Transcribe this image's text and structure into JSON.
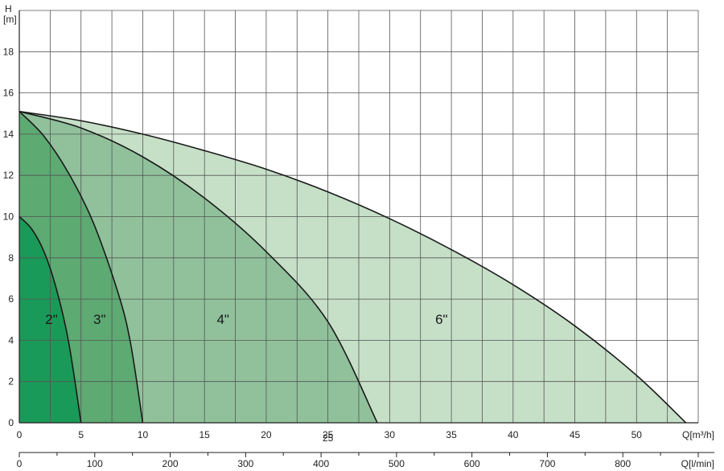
{
  "chart_data": {
    "type": "area",
    "y_axis": {
      "label_top": "H",
      "label_unit": "[m]",
      "ticks": [
        0,
        2,
        4,
        6,
        8,
        10,
        12,
        14,
        16,
        18
      ],
      "range": [
        0,
        20
      ],
      "grid": true
    },
    "x_axis_primary": {
      "label": "Q[m³/h]",
      "ticks": [
        0,
        5,
        10,
        15,
        20,
        25,
        30,
        35,
        40,
        45,
        50
      ],
      "range": [
        0,
        55
      ]
    },
    "x_axis_secondary": {
      "label": "Q[l/min]",
      "ticks": [
        0,
        100,
        200,
        300,
        400,
        500,
        600,
        700,
        800
      ],
      "range": [
        0,
        900
      ]
    },
    "series": [
      {
        "name": "6\"",
        "color": "#c6e0c7",
        "shutoff_head": 15.1,
        "max_flow": 54.0,
        "points": [
          [
            0,
            15.1
          ],
          [
            5,
            14.65
          ],
          [
            10,
            14.0
          ],
          [
            15,
            13.2
          ],
          [
            20,
            12.3
          ],
          [
            25,
            11.2
          ],
          [
            30,
            9.9
          ],
          [
            35,
            8.4
          ],
          [
            40,
            6.7
          ],
          [
            45,
            4.7
          ],
          [
            50,
            2.3
          ],
          [
            54,
            0
          ]
        ]
      },
      {
        "name": "4\"",
        "color": "#90c19b",
        "shutoff_head": 15.1,
        "max_flow": 29.0,
        "points": [
          [
            0,
            15.1
          ],
          [
            5,
            14.3
          ],
          [
            10,
            12.9
          ],
          [
            15,
            10.9
          ],
          [
            20,
            8.3
          ],
          [
            25,
            4.9
          ],
          [
            29,
            0
          ]
        ]
      },
      {
        "name": "3\"",
        "color": "#5daa72",
        "shutoff_head": 15.1,
        "max_flow": 10.0,
        "points": [
          [
            0,
            15.1
          ],
          [
            2,
            13.9
          ],
          [
            4,
            12.1
          ],
          [
            6,
            9.7
          ],
          [
            8,
            6.3
          ],
          [
            9,
            3.9
          ],
          [
            10,
            0
          ]
        ]
      },
      {
        "name": "2\"",
        "color": "#1a9a58",
        "shutoff_head": 10.0,
        "max_flow": 5.0,
        "points": [
          [
            0,
            10.0
          ],
          [
            1,
            9.4
          ],
          [
            2,
            8.3
          ],
          [
            3,
            6.5
          ],
          [
            4,
            3.9
          ],
          [
            5,
            0
          ]
        ]
      }
    ],
    "region_labels": [
      "2\"",
      "3\"",
      "4\"",
      "6\""
    ],
    "annotation_extra": "25"
  }
}
